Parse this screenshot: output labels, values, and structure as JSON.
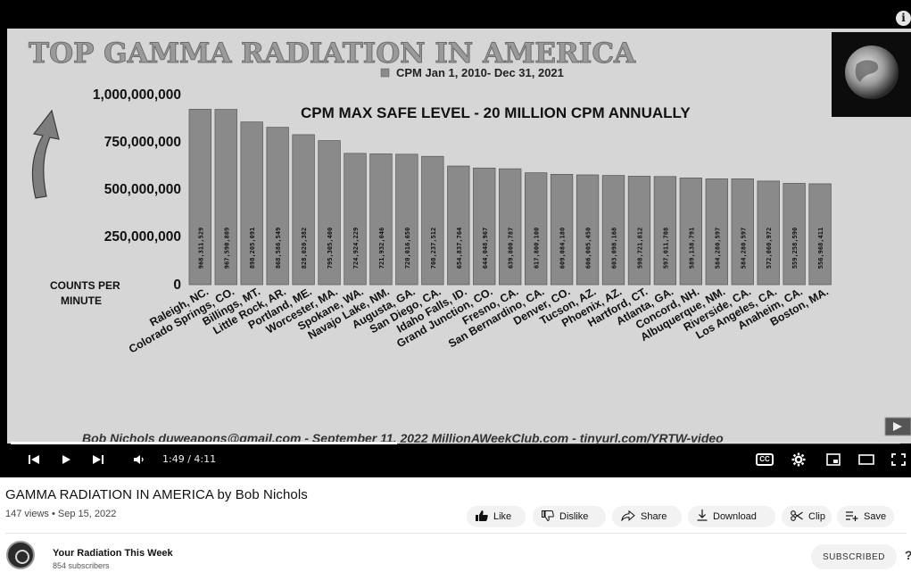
{
  "video": {
    "title": "GAMMA RADIATION IN AMERICA by Bob Nichols",
    "meta": "147 views • Sep 15, 2022",
    "time": "1:49 / 4:11",
    "progress": 0.434,
    "info_icon": "i"
  },
  "actions": {
    "like": "Like",
    "dislike": "Dislike",
    "share": "Share",
    "download": "Download",
    "clip": "Clip",
    "save": "Save"
  },
  "channel": {
    "name": "Your Radiation This Week",
    "subscribers": "854 subscribers",
    "subscribe_label": "SUBSCRIBED"
  },
  "chart_data": {
    "type": "bar",
    "title": "TOP GAMMA RADIATION IN AMERICA",
    "legend": "CPM Jan 1, 2010- Dec 31, 2021",
    "annotation": "CPM  MAX SAFE LEVEL - 20 MILLION CPM ANNUALLY",
    "ylabel": "COUNTS PER MINUTE",
    "footer": "Bob Nichols duweapons@gmail.com - September 11, 2022   MillionAWeekClub.com  -  tinyurl.com/YRTW-video",
    "yticks": [
      "1,000,000,000",
      "750,000,000",
      "500,000,000",
      "250,000,000",
      "0"
    ],
    "ylim": [
      0,
      1000000000
    ],
    "bar_color": "#8a8a8a",
    "categories": [
      "Raleigh, NC.",
      "Colorado Springs, CO.",
      "Billings, MT.",
      "Little Rock, AR.",
      "Portland, ME.",
      "Worcester, MA.",
      "Spokane, WA.",
      "Navajo Lake, NM.",
      "Augusta, GA.",
      "San Diego, CA.",
      "Idaho Falls, ID.",
      "Grand Junction, CO.",
      "Fresno, CA.",
      "San Bernardino, CA.",
      "Denver, CO.",
      "Tucson, AZ.",
      "Phoenix, AZ.",
      "Hartford, CT.",
      "Atlanta, GA.",
      "Concord, NH.",
      "Albuquerque, NM.",
      "Riverside, CA.",
      "Los Angeles, CA.",
      "Anaheim, CA.",
      "Boston, MA."
    ],
    "values": [
      968311529,
      967590809,
      898205091,
      868586549,
      828020382,
      795305400,
      724924229,
      721932046,
      720016650,
      708237512,
      654837764,
      644048967,
      639800787,
      617800100,
      609084180,
      606005450,
      603098168,
      598721812,
      597011708,
      589138791,
      584280597,
      584280597,
      572060972,
      559258590,
      556968411
    ],
    "value_labels": [
      "968,311,529",
      "967,590,809",
      "898,205,091",
      "868,586,549",
      "828,020,382",
      "795,305,400",
      "724,924,229",
      "721,932,046",
      "720,016,650",
      "708,237,512",
      "654,837,764",
      "644,048,967",
      "639,800,787",
      "617,800,100",
      "609,084,180",
      "606,005,450",
      "603,098,168",
      "598,721,812",
      "597,011,708",
      "589,138,791",
      "584,280,597",
      "584,280,597",
      "572,060,972",
      "559,258,590",
      "556,968,411"
    ]
  }
}
